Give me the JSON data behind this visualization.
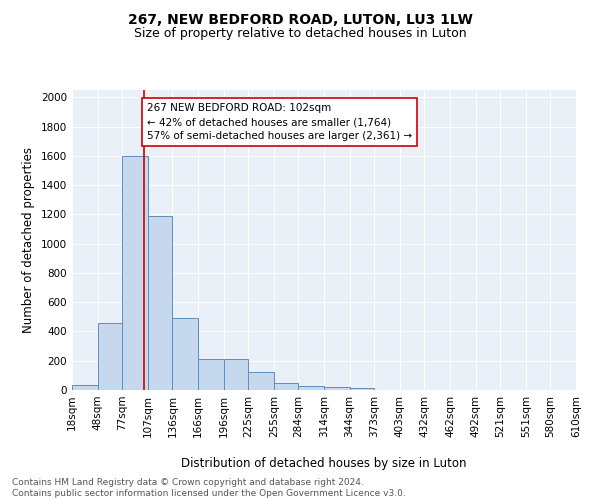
{
  "title": "267, NEW BEDFORD ROAD, LUTON, LU3 1LW",
  "subtitle": "Size of property relative to detached houses in Luton",
  "xlabel": "Distribution of detached houses by size in Luton",
  "ylabel": "Number of detached properties",
  "bin_edges": [
    18,
    48,
    77,
    107,
    136,
    166,
    196,
    225,
    255,
    284,
    314,
    344,
    373,
    403,
    432,
    462,
    492,
    521,
    551,
    580,
    610
  ],
  "bar_heights": [
    35,
    460,
    1600,
    1190,
    490,
    210,
    210,
    125,
    45,
    25,
    20,
    15,
    0,
    0,
    0,
    0,
    0,
    0,
    0,
    0
  ],
  "bar_color": "#c5d8ed",
  "bar_edge_color": "#5a8fc0",
  "property_size": 102,
  "property_line_color": "#cc0000",
  "annotation_text": "267 NEW BEDFORD ROAD: 102sqm\n← 42% of detached houses are smaller (1,764)\n57% of semi-detached houses are larger (2,361) →",
  "annotation_box_color": "#ffffff",
  "annotation_box_edge_color": "#cc0000",
  "ylim": [
    0,
    2050
  ],
  "yticks": [
    0,
    200,
    400,
    600,
    800,
    1000,
    1200,
    1400,
    1600,
    1800,
    2000
  ],
  "background_color": "#eaf0f8",
  "grid_color": "#ffffff",
  "footer_text": "Contains HM Land Registry data © Crown copyright and database right 2024.\nContains public sector information licensed under the Open Government Licence v3.0.",
  "title_fontsize": 10,
  "subtitle_fontsize": 9,
  "xlabel_fontsize": 8.5,
  "ylabel_fontsize": 8.5,
  "tick_fontsize": 7.5,
  "annotation_fontsize": 7.5,
  "footer_fontsize": 6.5
}
